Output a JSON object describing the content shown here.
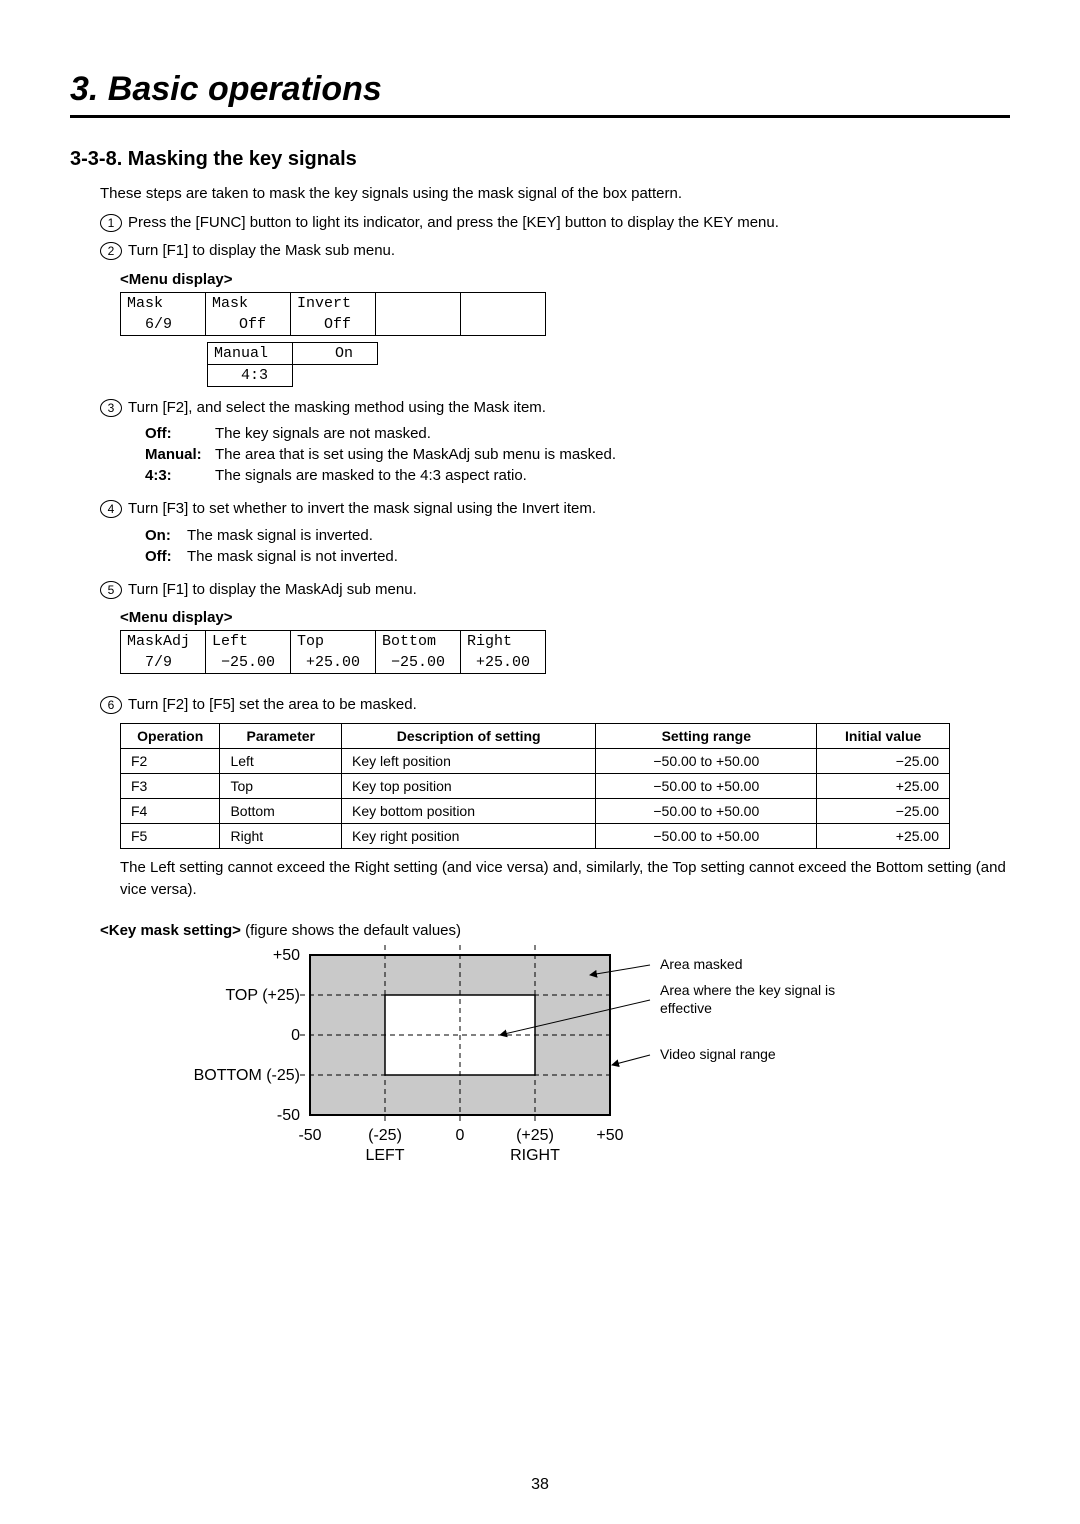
{
  "chapter_title": "3. Basic operations",
  "section_title": "3-3-8. Masking the key signals",
  "intro": "These steps are taken to mask the key signals using the mask signal of the box pattern.",
  "steps": {
    "1": "Press the [FUNC] button to light its indicator, and press the [KEY] button to display the KEY menu.",
    "2": "Turn [F1] to display the Mask sub menu.",
    "3": "Turn [F2], and select the masking method using the Mask item.",
    "4": "Turn [F3] to set whether to invert the mask signal using the Invert item.",
    "5": "Turn [F1] to display the MaskAdj sub menu.",
    "6": "Turn [F2] to [F5] set the area to be masked."
  },
  "menu_display_label": "<Menu display>",
  "mask_menu": {
    "r1": [
      "Mask",
      "Mask",
      "Invert",
      "",
      ""
    ],
    "r2": [
      "  6/9",
      "   Off",
      "   Off",
      "",
      ""
    ],
    "drop1": [
      "Manual",
      "    On"
    ],
    "drop2": [
      "   4:3",
      ""
    ]
  },
  "mask_defs": [
    {
      "k": "Off:",
      "v": "The key signals are not masked."
    },
    {
      "k": "Manual:",
      "v": "The area that is set using the MaskAdj sub menu is masked."
    },
    {
      "k": "4:3:",
      "v": "The signals are masked to the 4:3 aspect ratio."
    }
  ],
  "invert_defs": [
    {
      "k": "On:",
      "v": "The mask signal is inverted."
    },
    {
      "k": "Off:",
      "v": "The mask signal is not inverted."
    }
  ],
  "maskadj_menu": {
    "r1": [
      "MaskAdj",
      "Left",
      "Top",
      "Bottom",
      "Right"
    ],
    "r2": [
      "  7/9",
      " −25.00",
      " +25.00",
      " −25.00",
      " +25.00"
    ]
  },
  "params_table": {
    "headers": [
      "Operation",
      "Parameter",
      "Description of setting",
      "Setting range",
      "Initial value"
    ],
    "rows": [
      [
        "F2",
        "Left",
        "Key left position",
        "−50.00 to +50.00",
        "−25.00"
      ],
      [
        "F3",
        "Top",
        "Key top position",
        "−50.00 to +50.00",
        "+25.00"
      ],
      [
        "F4",
        "Bottom",
        "Key bottom position",
        "−50.00 to +50.00",
        "−25.00"
      ],
      [
        "F5",
        "Right",
        "Key right position",
        "−50.00 to +50.00",
        "+25.00"
      ]
    ]
  },
  "note": "The Left setting cannot exceed the Right setting (and vice versa) and, similarly, the Top setting cannot exceed the Bottom setting (and vice versa).",
  "fig_label_bold": "<Key mask setting>",
  "fig_label_rest": " (figure shows the default values)",
  "figure": {
    "y_labels": {
      "top": "+50",
      "t25": "TOP (+25)",
      "zero": "0",
      "b25": "BOTTOM (-25)",
      "bot": "-50"
    },
    "x_labels": {
      "l50": "-50",
      "l25": "(-25)",
      "zero": "0",
      "r25": "(+25)",
      "r50": "+50"
    },
    "axis_names": {
      "left": "LEFT",
      "right": "RIGHT"
    },
    "legend": {
      "masked": "Area masked",
      "effective": "Area where the key signal is effective",
      "range": "Video signal range"
    },
    "colors": {
      "masked": "#c9c9c9",
      "effective": "#ffffff",
      "stroke": "#000000"
    }
  },
  "page_number": "38"
}
